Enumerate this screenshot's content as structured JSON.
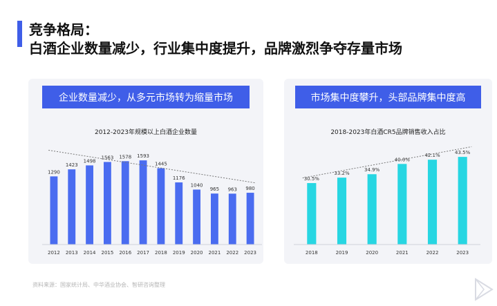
{
  "header": {
    "title": "竞争格局：",
    "subtitle": "白酒企业数量减少，行业集中度提升，品牌激烈争夺存量市场"
  },
  "left_panel": {
    "banner": "企业数量减少，从多元市场转为缩量市场",
    "chart_title": "2012-2023年规模以上白酒企业数量"
  },
  "right_panel": {
    "banner": "市场集中度攀升，头部品牌集中度高",
    "chart_title": "2018-2023年白酒CR5品牌销售收入占比"
  },
  "source_note": "资料来源：国家统计局、中华酒业协会、智研咨询整理",
  "colors": {
    "accent": "#3f5ee8",
    "bar_blue": "#4a6cf0",
    "bar_cyan": "#27d6e2",
    "trend": "#777777"
  },
  "icons": {
    "corner_logo": "triangle-logo-icon"
  },
  "chart_data": [
    {
      "type": "bar",
      "title": "2012-2023年规模以上白酒企业数量",
      "categories": [
        "2012",
        "2013",
        "2014",
        "2015",
        "2016",
        "2017",
        "2018",
        "2019",
        "2020",
        "2021",
        "2022",
        "2023"
      ],
      "values": [
        1290,
        1423,
        1498,
        1563,
        1578,
        1593,
        1445,
        1176,
        1040,
        965,
        963,
        980
      ],
      "value_labels": [
        "1290",
        "1423",
        "1498",
        "1563",
        "1578",
        "1593",
        "1445",
        "1176",
        "1040",
        "965",
        "963",
        "980"
      ],
      "ylim": [
        0,
        1700
      ],
      "trendline": "decreasing dotted",
      "grid": false,
      "legend": "none"
    },
    {
      "type": "bar",
      "title": "2018-2023年白酒CR5品牌销售收入占比",
      "categories": [
        "2018",
        "2019",
        "2020",
        "2021",
        "2022",
        "2023"
      ],
      "values": [
        30.5,
        33.2,
        34.9,
        40.0,
        42.1,
        43.5
      ],
      "value_labels": [
        "30.5%",
        "33.2%",
        "34.9%",
        "40.0%",
        "42.1%",
        "43.5%"
      ],
      "ylim": [
        0,
        48
      ],
      "unit": "%",
      "trendline": "increasing dotted",
      "grid": false,
      "legend": "none"
    }
  ]
}
